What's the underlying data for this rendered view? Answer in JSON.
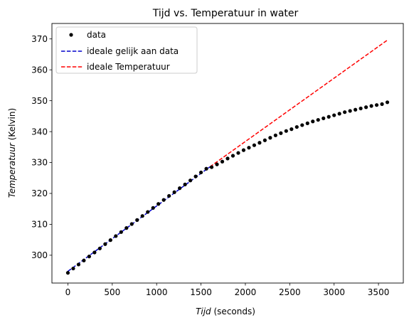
{
  "chart_data": {
    "type": "scatter",
    "title": "Tijd vs. Temperatuur in water",
    "xlabel": {
      "italic": "Tijd",
      "rest": " (seconds)"
    },
    "ylabel": {
      "italic": "Temperatuur",
      "rest": " (Kelvin)"
    },
    "xlim": [
      -180,
      3780
    ],
    "ylim": [
      291,
      375
    ],
    "xticks": [
      0,
      500,
      1000,
      1500,
      2000,
      2500,
      3000,
      3500
    ],
    "yticks": [
      300,
      310,
      320,
      330,
      340,
      350,
      360,
      370
    ],
    "grid": false,
    "legend_placement": "top-left",
    "colors": {
      "data": "#000000",
      "fit": "#0000cc",
      "ideal": "#ff0000"
    },
    "series": [
      {
        "name": "data",
        "kind": "markers",
        "x": [
          0,
          60,
          120,
          180,
          240,
          300,
          360,
          420,
          480,
          540,
          600,
          660,
          720,
          780,
          840,
          900,
          960,
          1020,
          1080,
          1140,
          1200,
          1260,
          1320,
          1380,
          1440,
          1500,
          1560,
          1620,
          1680,
          1740,
          1800,
          1860,
          1920,
          1980,
          2040,
          2100,
          2160,
          2220,
          2280,
          2340,
          2400,
          2460,
          2520,
          2580,
          2640,
          2700,
          2760,
          2820,
          2880,
          2940,
          3000,
          3060,
          3120,
          3180,
          3240,
          3300,
          3360,
          3420,
          3480,
          3540,
          3600
        ],
        "y": [
          294.3,
          295.7,
          297.0,
          298.3,
          299.6,
          300.9,
          302.2,
          303.6,
          304.9,
          306.2,
          307.5,
          308.8,
          310.1,
          311.4,
          312.7,
          314.0,
          315.3,
          316.6,
          317.9,
          319.2,
          320.4,
          321.7,
          322.9,
          324.2,
          325.5,
          326.8,
          328.0,
          328.5,
          329.4,
          330.3,
          331.3,
          332.2,
          333.1,
          334.0,
          334.8,
          335.6,
          336.4,
          337.2,
          338.0,
          338.8,
          339.5,
          340.2,
          340.8,
          341.5,
          342.1,
          342.7,
          343.3,
          343.8,
          344.3,
          344.8,
          345.3,
          345.8,
          346.3,
          346.7,
          347.1,
          347.5,
          347.9,
          348.3,
          348.6,
          348.9,
          349.5
        ]
      },
      {
        "name": "ideale gelijk aan data",
        "kind": "dashed-line",
        "x": [
          0,
          1600
        ],
        "y": [
          294.8,
          328.6
        ]
      },
      {
        "name": "ideale Temperatuur",
        "kind": "dashed-line",
        "x": [
          1600,
          3600
        ],
        "y": [
          328.6,
          369.6
        ]
      }
    ]
  }
}
